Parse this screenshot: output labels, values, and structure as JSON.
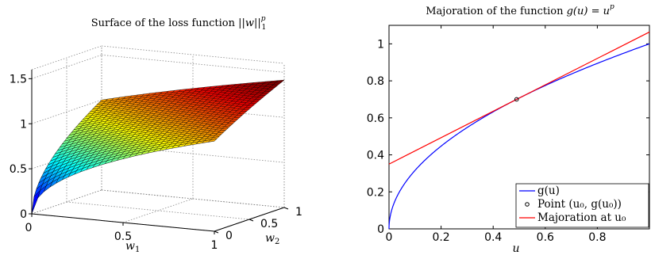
{
  "chart_data": [
    {
      "type": "surface",
      "title_text": "Surface of the loss function ",
      "title_math": "||w||",
      "title_sup": "p",
      "title_sub": "1",
      "xlabel": "w",
      "xlabel_sub": "1",
      "ylabel": "w",
      "ylabel_sub": "2",
      "x_range": [
        0,
        1
      ],
      "y_range": [
        0,
        1
      ],
      "z_range": [
        0,
        1.6
      ],
      "x_ticks": [
        "0",
        "0.5",
        "1"
      ],
      "y_ticks": [
        "0",
        "0.5",
        "1"
      ],
      "z_ticks": [
        "0",
        "0.5",
        "1",
        "1.5"
      ],
      "function": "z = (w1 + w2)^p",
      "p": 0.5,
      "z_at_corners": {
        "w1_0_w2_0": 0,
        "w1_1_w2_0": 1,
        "w1_0_w2_1": 1,
        "w1_1_w2_1": 1.414
      },
      "colormap": "jet",
      "grid": true,
      "grid_resolution": 30
    },
    {
      "type": "line",
      "title_text": "Majoration of the function ",
      "title_math": "g(u) = u",
      "title_sup": "p",
      "xlabel": "u",
      "xlim": [
        0,
        1
      ],
      "ylim": [
        0,
        1.1
      ],
      "x_ticks": [
        "0",
        "0.2",
        "0.4",
        "0.6",
        "0.8"
      ],
      "y_ticks": [
        "0",
        "0.2",
        "0.4",
        "0.6",
        "0.8",
        "1"
      ],
      "legend_position": "bottom-right",
      "series": [
        {
          "name": "g(u)",
          "color": "#0000ff",
          "function": "u^0.5",
          "x": [
            0,
            0.001,
            0.01,
            0.05,
            0.1,
            0.2,
            0.3,
            0.4,
            0.49,
            0.6,
            0.7,
            0.8,
            0.9,
            1
          ],
          "y": [
            0,
            0.032,
            0.1,
            0.224,
            0.316,
            0.447,
            0.548,
            0.632,
            0.7,
            0.775,
            0.837,
            0.894,
            0.949,
            1
          ]
        },
        {
          "name": "Point (u₀, g(u₀))",
          "marker": "circle",
          "color": "#000000",
          "x": [
            0.49
          ],
          "y": [
            0.7
          ]
        },
        {
          "name": "Majoration at u₀",
          "color": "#ff0000",
          "x": [
            0,
            1
          ],
          "y": [
            0.35,
            1.064
          ]
        }
      ]
    }
  ]
}
